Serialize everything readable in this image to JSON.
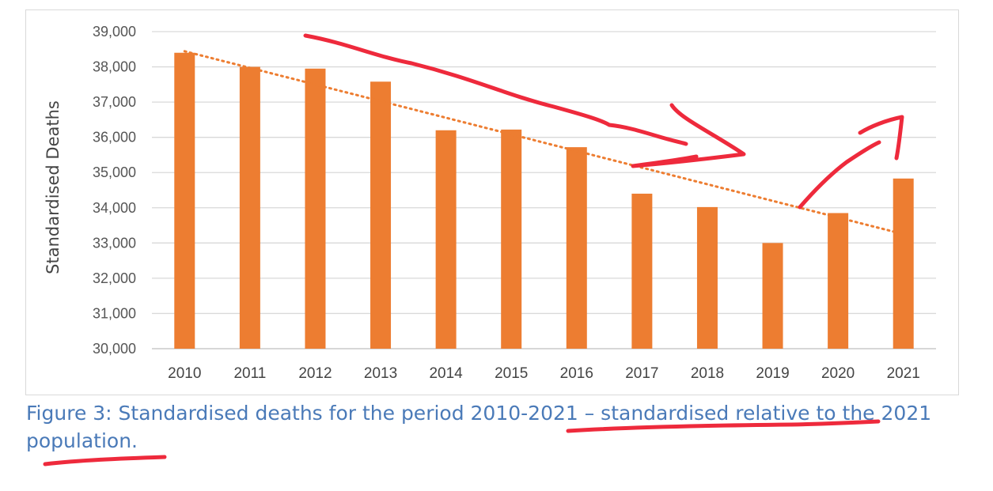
{
  "chart_data": {
    "type": "bar",
    "categories": [
      "2010",
      "2011",
      "2012",
      "2013",
      "2014",
      "2015",
      "2016",
      "2017",
      "2018",
      "2019",
      "2020",
      "2021"
    ],
    "values": [
      38400,
      38000,
      37950,
      37580,
      36200,
      36220,
      35720,
      34400,
      34020,
      33000,
      33850,
      34830
    ],
    "ylabel": "Standardised Deaths",
    "xlabel": "",
    "ylim": [
      30000,
      39000
    ],
    "yticks": [
      "30,000",
      "31,000",
      "32,000",
      "33,000",
      "34,000",
      "35,000",
      "36,000",
      "37,000",
      "38,000",
      "39,000"
    ],
    "grid": true,
    "bar_color": "#ed7d31",
    "trendline": {
      "type": "linear",
      "style": "dotted",
      "color": "#ed7d31"
    }
  },
  "caption": {
    "line1": "Figure 3: Standardised deaths for the period 2010-2021 – standardised relative to the 2021",
    "line2": "population."
  },
  "annotation_color": "#ee2a3c"
}
